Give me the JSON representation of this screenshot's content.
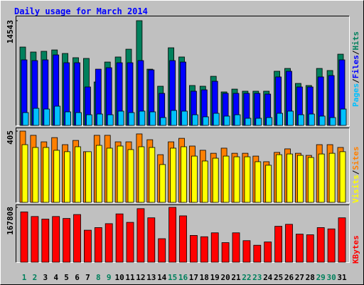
{
  "chart_data": {
    "type": "bar",
    "title": "Daily usage for March 2014",
    "categories": [
      "1",
      "2",
      "3",
      "4",
      "5",
      "6",
      "7",
      "8",
      "9",
      "10",
      "11",
      "12",
      "13",
      "14",
      "15",
      "16",
      "17",
      "18",
      "19",
      "20",
      "21",
      "22",
      "23",
      "24",
      "25",
      "26",
      "27",
      "28",
      "29",
      "30",
      "31"
    ],
    "category_colors": [
      "#00805c",
      "#00805c",
      "#000000",
      "#000000",
      "#000000",
      "#000000",
      "#000000",
      "#00805c",
      "#00805c",
      "#000000",
      "#000000",
      "#000000",
      "#000000",
      "#000000",
      "#00805c",
      "#00805c",
      "#000000",
      "#000000",
      "#000000",
      "#000000",
      "#000000",
      "#00805c",
      "#00805c",
      "#000000",
      "#000000",
      "#000000",
      "#000000",
      "#000000",
      "#00805c",
      "#00805c",
      "#000000"
    ],
    "legend_separator": "/",
    "panels": [
      {
        "ylim": [
          0,
          14543
        ],
        "yticks": [
          14543
        ],
        "series": [
          {
            "name": "Hits",
            "color": "#00805c",
            "values": [
              10880,
              10190,
              10290,
              10480,
              9990,
              9400,
              9300,
              6030,
              8800,
              9500,
              10580,
              14543,
              7810,
              5440,
              10780,
              9500,
              5540,
              5440,
              6820,
              4650,
              5040,
              4750,
              4750,
              4750,
              7520,
              7910,
              5830,
              5540,
              7910,
              7620,
              9890
            ]
          },
          {
            "name": "Files",
            "color": "#0000ff",
            "values": [
              9100,
              9000,
              9100,
              9790,
              8700,
              8700,
              5340,
              7810,
              8010,
              8700,
              8700,
              9000,
              7710,
              4450,
              9000,
              8800,
              4750,
              4940,
              6130,
              4450,
              4450,
              4450,
              4450,
              4350,
              6730,
              7520,
              5340,
              5340,
              6730,
              6920,
              9100
            ]
          },
          {
            "name": "Pages",
            "color": "#00c0ff",
            "values": [
              1780,
              2370,
              2270,
              2670,
              1880,
              1780,
              1480,
              1580,
              1480,
              1980,
              1780,
              1980,
              1880,
              1090,
              2080,
              1980,
              1480,
              1190,
              1680,
              1290,
              1480,
              990,
              990,
              1090,
              1680,
              1980,
              1480,
              1580,
              1290,
              1090,
              2270
            ]
          }
        ]
      },
      {
        "ylim": [
          0,
          405
        ],
        "yticks": [
          405
        ],
        "series": [
          {
            "name": "Sites",
            "color": "#ff8000",
            "values": [
              405,
              381,
              344,
              368,
              328,
              352,
              288,
              381,
              381,
              344,
              344,
              389,
              356,
              271,
              344,
              364,
              320,
              296,
              279,
              308,
              279,
              279,
              263,
              231,
              284,
              304,
              279,
              267,
              328,
              328,
              312
            ]
          },
          {
            "name": "Visits",
            "color": "#ffff00",
            "values": [
              328,
              312,
              312,
              296,
              288,
              316,
              288,
              324,
              308,
              320,
              300,
              316,
              312,
              215,
              308,
              316,
              263,
              235,
              251,
              263,
              259,
              259,
              231,
              211,
              271,
              275,
              267,
              255,
              275,
              279,
              288
            ]
          }
        ]
      },
      {
        "ylim": [
          0,
          167808
        ],
        "yticks": [
          167808
        ],
        "series": [
          {
            "name": "KBytes",
            "color": "#ff0000",
            "values": [
              153800,
              139800,
              131800,
              139800,
              133800,
              145800,
              97900,
              105900,
              117900,
              147800,
              121900,
              163800,
              135800,
              71900,
              167808,
              141800,
              81900,
              77900,
              89900,
              59900,
              89900,
              65900,
              51900,
              61900,
              109900,
              115900,
              85900,
              83900,
              105900,
              101900,
              135800
            ]
          }
        ]
      }
    ]
  }
}
